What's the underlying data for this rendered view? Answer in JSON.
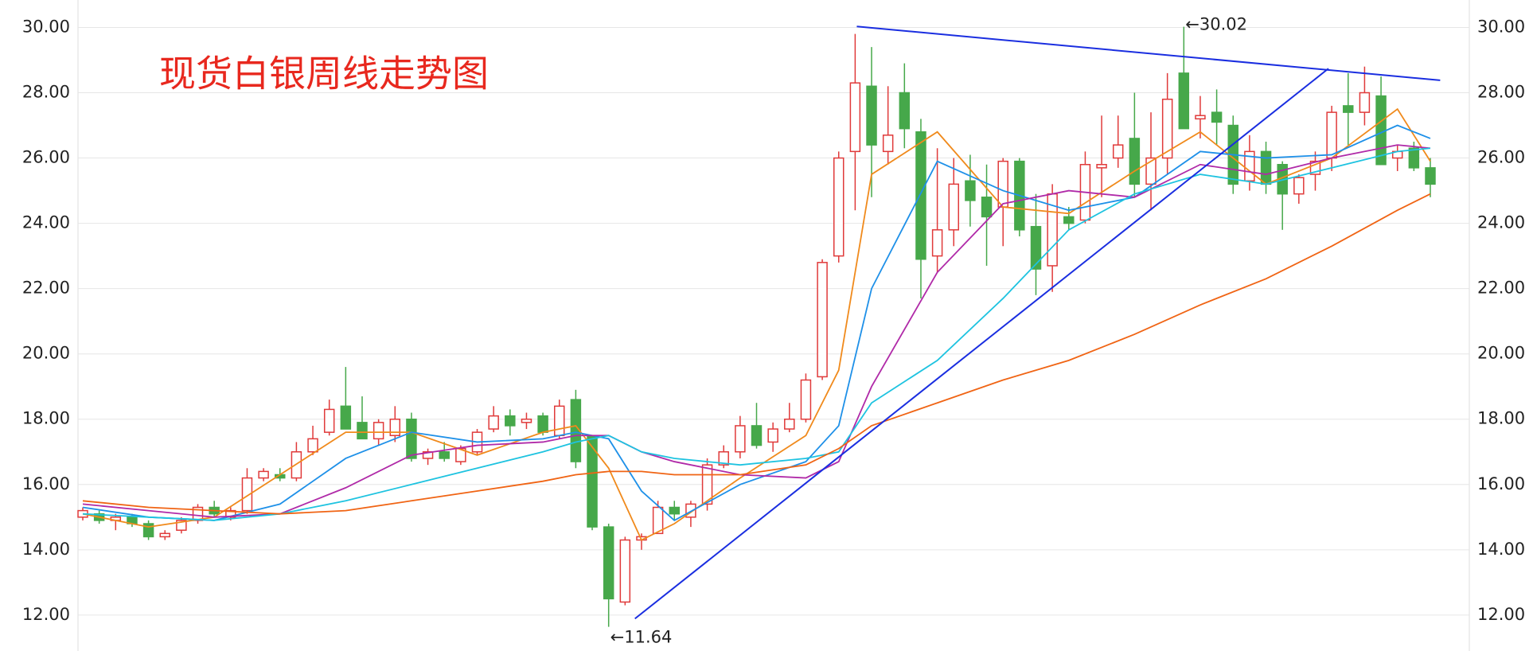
{
  "chart_data": {
    "type": "candlestick",
    "title": "现货白银周线走势图",
    "title_color": "#e8281e",
    "up_color": "#e03a3a",
    "down_color": "#46a84a",
    "ylim": [
      10.9,
      30.84
    ],
    "yticks": [
      {
        "value": 12,
        "label": "12.00"
      },
      {
        "value": 14,
        "label": "14.00"
      },
      {
        "value": 16,
        "label": "16.00"
      },
      {
        "value": 18,
        "label": "18.00"
      },
      {
        "value": 20,
        "label": "20.00"
      },
      {
        "value": 22,
        "label": "22.00"
      },
      {
        "value": 24,
        "label": "24.00"
      },
      {
        "value": 26,
        "label": "26.00"
      },
      {
        "value": 28,
        "label": "28.00"
      },
      {
        "value": 30,
        "label": "30.00"
      }
    ],
    "grid": true,
    "ohlc": [
      [
        15.0,
        15.3,
        14.9,
        15.2
      ],
      [
        15.1,
        15.2,
        14.8,
        14.9
      ],
      [
        14.9,
        15.1,
        14.6,
        15.0
      ],
      [
        15.0,
        15.1,
        14.7,
        14.8
      ],
      [
        14.8,
        14.9,
        14.3,
        14.4
      ],
      [
        14.4,
        14.6,
        14.3,
        14.5
      ],
      [
        14.6,
        15.0,
        14.5,
        14.9
      ],
      [
        14.9,
        15.4,
        14.8,
        15.3
      ],
      [
        15.3,
        15.5,
        15.0,
        15.1
      ],
      [
        15.0,
        15.3,
        14.9,
        15.2
      ],
      [
        15.2,
        16.5,
        15.1,
        16.2
      ],
      [
        16.2,
        16.5,
        16.1,
        16.4
      ],
      [
        16.3,
        16.5,
        16.1,
        16.2
      ],
      [
        16.2,
        17.3,
        16.1,
        17.0
      ],
      [
        17.0,
        17.8,
        16.9,
        17.4
      ],
      [
        17.6,
        18.6,
        17.5,
        18.3
      ],
      [
        18.4,
        19.6,
        17.8,
        17.7
      ],
      [
        17.9,
        18.7,
        17.4,
        17.4
      ],
      [
        17.4,
        18.0,
        17.2,
        17.9
      ],
      [
        17.5,
        18.4,
        17.3,
        18.0
      ],
      [
        18.0,
        18.2,
        16.7,
        16.8
      ],
      [
        16.8,
        17.1,
        16.6,
        17.0
      ],
      [
        17.0,
        17.3,
        16.7,
        16.8
      ],
      [
        16.7,
        17.2,
        16.6,
        17.1
      ],
      [
        17.0,
        17.7,
        16.9,
        17.6
      ],
      [
        17.7,
        18.4,
        17.6,
        18.1
      ],
      [
        18.1,
        18.3,
        17.5,
        17.8
      ],
      [
        17.9,
        18.2,
        17.7,
        18.0
      ],
      [
        18.1,
        18.2,
        17.5,
        17.6
      ],
      [
        17.5,
        18.6,
        17.4,
        18.4
      ],
      [
        18.6,
        18.9,
        16.5,
        16.7
      ],
      [
        17.5,
        17.5,
        14.6,
        14.7
      ],
      [
        14.7,
        14.8,
        11.64,
        12.5
      ],
      [
        12.4,
        14.4,
        12.3,
        14.3
      ],
      [
        14.3,
        14.5,
        14.0,
        14.4
      ],
      [
        14.5,
        15.5,
        14.5,
        15.3
      ],
      [
        15.3,
        15.5,
        14.9,
        15.1
      ],
      [
        15.0,
        15.5,
        14.7,
        15.4
      ],
      [
        15.4,
        16.8,
        15.2,
        16.6
      ],
      [
        16.6,
        17.2,
        16.5,
        17.0
      ],
      [
        17.0,
        18.1,
        16.8,
        17.8
      ],
      [
        17.8,
        18.5,
        17.1,
        17.2
      ],
      [
        17.3,
        17.9,
        17.0,
        17.7
      ],
      [
        17.7,
        18.5,
        17.6,
        18.0
      ],
      [
        18.0,
        19.4,
        17.9,
        19.2
      ],
      [
        19.3,
        22.9,
        19.2,
        22.8
      ],
      [
        23.0,
        26.2,
        22.8,
        26.0
      ],
      [
        26.2,
        29.8,
        24.4,
        28.3
      ],
      [
        28.2,
        29.4,
        24.8,
        26.4
      ],
      [
        26.2,
        28.2,
        25.8,
        26.7
      ],
      [
        28.0,
        28.9,
        26.3,
        26.9
      ],
      [
        26.8,
        27.2,
        21.7,
        22.9
      ],
      [
        23.0,
        26.3,
        22.5,
        23.8
      ],
      [
        23.8,
        26.0,
        23.3,
        25.2
      ],
      [
        25.3,
        26.1,
        23.9,
        24.7
      ],
      [
        24.8,
        25.8,
        22.7,
        24.2
      ],
      [
        24.5,
        26.0,
        23.3,
        25.9
      ],
      [
        25.9,
        26.0,
        23.6,
        23.8
      ],
      [
        23.9,
        24.9,
        21.8,
        22.6
      ],
      [
        22.7,
        25.2,
        21.9,
        24.9
      ],
      [
        24.2,
        24.5,
        23.8,
        24.0
      ],
      [
        24.1,
        26.2,
        24.0,
        25.8
      ],
      [
        25.7,
        27.3,
        24.8,
        25.8
      ],
      [
        26.0,
        27.3,
        25.7,
        26.4
      ],
      [
        26.6,
        28.0,
        24.8,
        25.2
      ],
      [
        25.2,
        27.4,
        24.4,
        26.0
      ],
      [
        26.0,
        28.6,
        25.5,
        27.8
      ],
      [
        28.6,
        30.02,
        26.9,
        26.9
      ],
      [
        27.2,
        27.9,
        26.6,
        27.3
      ],
      [
        27.4,
        28.1,
        26.4,
        27.1
      ],
      [
        27.0,
        27.3,
        24.9,
        25.2
      ],
      [
        25.3,
        26.7,
        25.0,
        26.2
      ],
      [
        26.2,
        26.5,
        24.9,
        25.2
      ],
      [
        25.8,
        25.9,
        23.8,
        24.9
      ],
      [
        24.9,
        25.5,
        24.6,
        25.4
      ],
      [
        25.5,
        26.2,
        25.0,
        25.9
      ],
      [
        26.0,
        27.6,
        25.6,
        27.4
      ],
      [
        27.6,
        28.6,
        26.4,
        27.4
      ],
      [
        27.4,
        28.8,
        27.0,
        28.0
      ],
      [
        27.9,
        28.5,
        25.8,
        25.8
      ],
      [
        26.0,
        26.4,
        25.6,
        26.2
      ],
      [
        26.3,
        26.5,
        25.6,
        25.7
      ],
      [
        25.7,
        26.0,
        24.8,
        25.2
      ]
    ],
    "series": [
      {
        "color": "#f08a1c",
        "x": [
          0,
          4,
          8,
          12,
          16,
          20,
          24,
          28,
          30,
          32,
          34,
          36,
          40,
          44,
          46,
          48,
          52,
          56,
          60,
          64,
          68,
          72,
          76,
          80,
          82
        ],
        "values": [
          15.1,
          14.7,
          15.0,
          16.3,
          17.6,
          17.6,
          16.9,
          17.6,
          17.8,
          16.5,
          14.3,
          14.8,
          16.2,
          17.5,
          19.5,
          25.5,
          26.8,
          24.5,
          24.3,
          25.6,
          26.8,
          25.2,
          26.0,
          27.5,
          25.9
        ]
      },
      {
        "color": "#1e90e8",
        "x": [
          0,
          4,
          8,
          12,
          16,
          20,
          24,
          28,
          30,
          32,
          34,
          36,
          40,
          44,
          46,
          48,
          52,
          56,
          60,
          64,
          68,
          72,
          76,
          80,
          82
        ],
        "values": [
          15.3,
          15.0,
          14.9,
          15.4,
          16.8,
          17.6,
          17.3,
          17.4,
          17.6,
          17.4,
          15.8,
          14.9,
          16.0,
          16.7,
          17.8,
          22.0,
          25.9,
          25.0,
          24.4,
          24.8,
          26.2,
          26.0,
          26.1,
          27.0,
          26.6
        ]
      },
      {
        "color": "#b02aa8",
        "x": [
          0,
          4,
          8,
          12,
          16,
          20,
          24,
          28,
          30,
          32,
          34,
          36,
          40,
          44,
          46,
          48,
          52,
          56,
          60,
          64,
          68,
          72,
          76,
          80,
          82
        ],
        "values": [
          15.4,
          15.2,
          15.0,
          15.1,
          15.9,
          16.9,
          17.2,
          17.3,
          17.5,
          17.5,
          17.0,
          16.7,
          16.3,
          16.2,
          16.7,
          19.0,
          22.5,
          24.6,
          25.0,
          24.8,
          25.8,
          25.5,
          26.0,
          26.4,
          26.3
        ]
      },
      {
        "color": "#1ec3e0",
        "x": [
          0,
          4,
          8,
          12,
          16,
          20,
          24,
          28,
          30,
          32,
          34,
          36,
          40,
          44,
          46,
          48,
          52,
          56,
          60,
          64,
          68,
          72,
          76,
          80,
          82
        ],
        "values": [
          15.1,
          15.0,
          14.9,
          15.1,
          15.5,
          16.0,
          16.5,
          17.0,
          17.3,
          17.5,
          17.0,
          16.8,
          16.6,
          16.8,
          17.0,
          18.5,
          19.8,
          21.7,
          23.8,
          24.9,
          25.5,
          25.2,
          25.7,
          26.2,
          26.3
        ]
      },
      {
        "color": "#f06414",
        "x": [
          0,
          4,
          8,
          12,
          16,
          20,
          24,
          28,
          30,
          32,
          34,
          36,
          40,
          44,
          46,
          48,
          52,
          56,
          60,
          64,
          68,
          72,
          76,
          80,
          82
        ],
        "values": [
          15.5,
          15.3,
          15.2,
          15.1,
          15.2,
          15.5,
          15.8,
          16.1,
          16.3,
          16.4,
          16.4,
          16.3,
          16.3,
          16.6,
          17.1,
          17.8,
          18.5,
          19.2,
          19.8,
          20.6,
          21.5,
          22.3,
          23.3,
          24.4,
          24.9
        ]
      }
    ],
    "trendlines": [
      {
        "color": "#1a2ee0",
        "x": [
          47.1,
          82.6
        ],
        "values": [
          30.03,
          28.38
        ]
      },
      {
        "color": "#1a2ee0",
        "x": [
          33.6,
          75.8
        ],
        "values": [
          11.89,
          28.74
        ]
      }
    ],
    "annotations": [
      {
        "label": "←30.02",
        "value": 30.02,
        "x": 67
      },
      {
        "label": "←11.64",
        "value": 11.64,
        "x": 32
      }
    ]
  }
}
